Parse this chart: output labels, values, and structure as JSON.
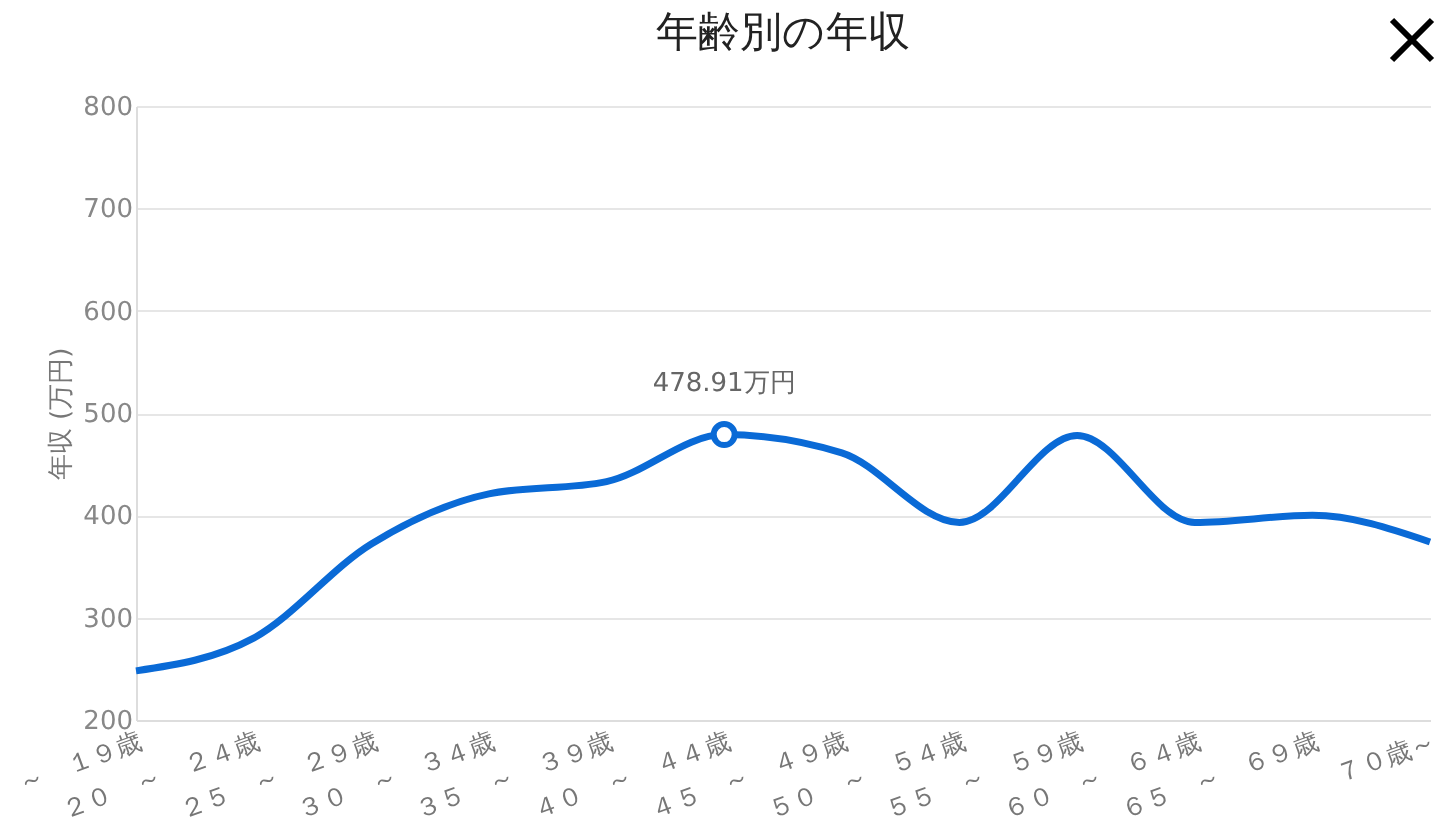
{
  "chart_data": {
    "type": "line",
    "title": "年齢別の年収",
    "ylabel": "年収 (万円)",
    "categories": [
      "～　１９歳",
      "２０　～　２４歳",
      "２５　～　２９歳",
      "３０　～　３４歳",
      "３５　～　３９歳",
      "４０　～　４４歳",
      "４５　～　４９歳",
      "５０　～　５４歳",
      "５５　～　５９歳",
      "６０　～　６４歳",
      "６５　～　６９歳",
      "７０歳～"
    ],
    "series": [
      {
        "color": "#0a6ad6",
        "values": [
          248,
          280,
          372,
          421,
          433,
          478.91,
          461,
          393,
          478,
          393,
          400,
          374
        ]
      }
    ],
    "ylim": [
      200,
      800
    ],
    "yticks": [
      200,
      300,
      400,
      500,
      600,
      700,
      800
    ],
    "grid": "y",
    "annotations": [
      {
        "text": "478.91万円",
        "x": "４０　～　４４歳",
        "y": 478.91
      }
    ]
  }
}
